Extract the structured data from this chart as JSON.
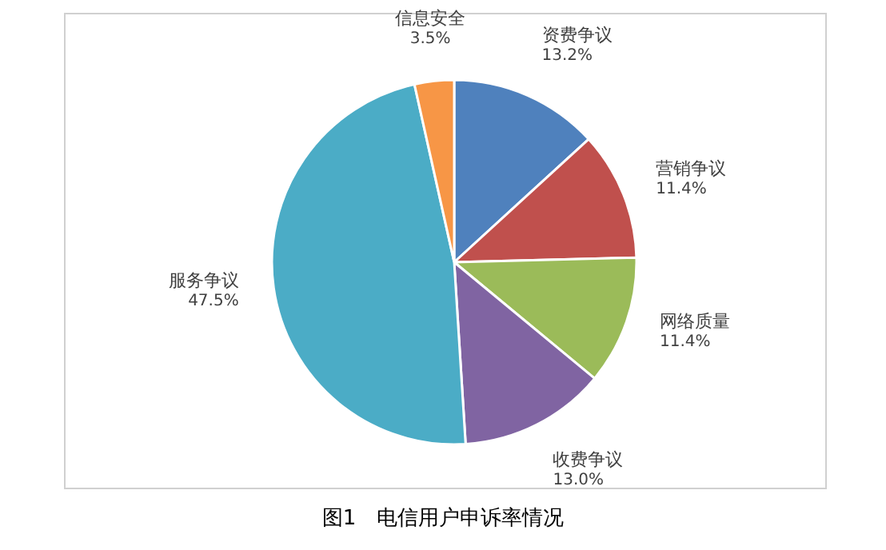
{
  "chart_data": {
    "type": "pie",
    "title": "图1　电信用户申诉率情况",
    "categories": [
      "资费争议",
      "营销争议",
      "网络质量",
      "收费争议",
      "服务争议",
      "信息安全"
    ],
    "values": [
      13.2,
      11.4,
      11.4,
      13.0,
      47.5,
      3.5
    ],
    "value_labels": [
      "13.2%",
      "11.4%",
      "11.4%",
      "13.0%",
      "47.5%",
      "3.5%"
    ],
    "colors": [
      "#4f81bd",
      "#c0504d",
      "#9bbb59",
      "#8064a2",
      "#4bacc6",
      "#f79646"
    ],
    "legend": false
  }
}
